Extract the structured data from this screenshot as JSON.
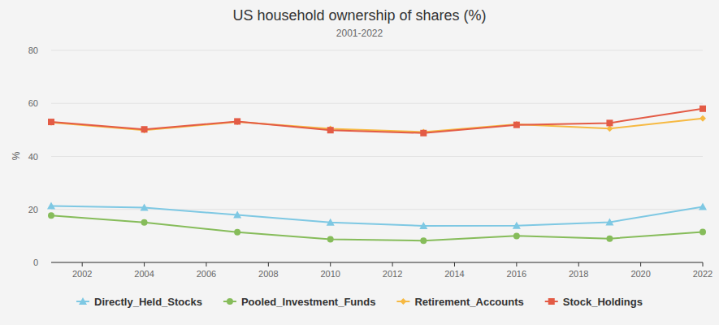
{
  "chart_data": {
    "type": "line",
    "title": "US household ownership of shares (%)",
    "subtitle": "2001-2022",
    "y_label": "%",
    "x": [
      2001,
      2004,
      2007,
      2010,
      2013,
      2016,
      2019,
      2022
    ],
    "xlim": [
      2001,
      2022
    ],
    "xticks": [
      2002,
      2004,
      2006,
      2008,
      2010,
      2012,
      2014,
      2016,
      2018,
      2020,
      2022
    ],
    "ylim": [
      0,
      80
    ],
    "yticks": [
      0,
      20,
      40,
      60,
      80
    ],
    "grid": true,
    "legend": "bottom",
    "series": [
      {
        "name": "Directly_Held_Stocks",
        "color": "#7ec8e3",
        "marker": "triangle",
        "values": [
          21.3,
          20.7,
          17.9,
          15.1,
          13.8,
          13.9,
          15.2,
          21.0
        ]
      },
      {
        "name": "Pooled_Investment_Funds",
        "color": "#86bc5a",
        "marker": "circle",
        "values": [
          17.7,
          15.1,
          11.4,
          8.7,
          8.2,
          10.0,
          9.0,
          11.5
        ]
      },
      {
        "name": "Retirement_Accounts",
        "color": "#f6b942",
        "marker": "diamond",
        "values": [
          52.8,
          49.9,
          53.0,
          50.4,
          49.2,
          52.1,
          50.5,
          54.3
        ]
      },
      {
        "name": "Stock_Holdings",
        "color": "#e35b45",
        "marker": "square",
        "values": [
          53.0,
          50.2,
          53.2,
          49.9,
          48.8,
          51.9,
          52.6,
          58.0
        ]
      }
    ]
  }
}
